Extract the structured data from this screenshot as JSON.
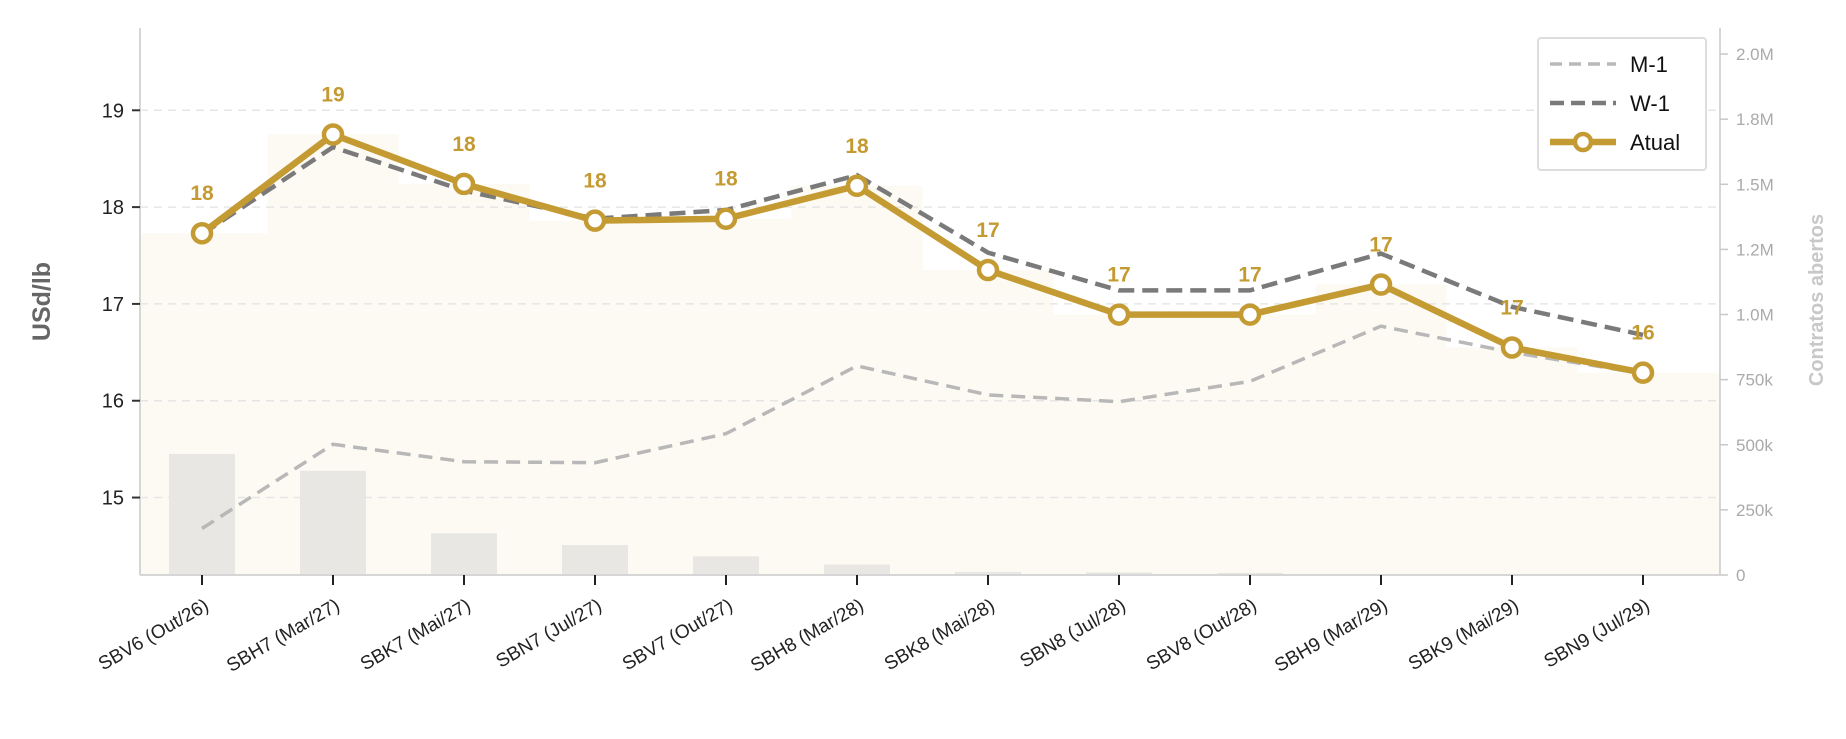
{
  "chart_data": {
    "type": "line",
    "categories": [
      "SBV6 (Out/26)",
      "SBH7 (Mar/27)",
      "SBK7 (Mai/27)",
      "SBN7 (Jul/27)",
      "SBV7 (Out/27)",
      "SBH8 (Mar/28)",
      "SBK8 (Mai/28)",
      "SBN8 (Jul/28)",
      "SBV8 (Out/28)",
      "SBH9 (Mar/29)",
      "SBK9 (Mai/29)",
      "SBN9 (Jul/29)"
    ],
    "ylabel": "USd/lb",
    "y2label": "Contratos abertos",
    "ylim": [
      14.2,
      19.85
    ],
    "y2lim": [
      0,
      2100000
    ],
    "yticks": [
      15,
      16,
      17,
      18,
      19
    ],
    "y2ticks": [
      0,
      250000,
      500000,
      750000,
      1000000,
      1250000,
      1500000,
      1750000,
      2000000
    ],
    "y2ticklabels": [
      "0",
      "250k",
      "500k",
      "750k",
      "1.0M",
      "1.2M",
      "1.5M",
      "1.8M",
      "2.0M"
    ],
    "grid": true,
    "legend_position": "top-right",
    "series": [
      {
        "name": "M-1",
        "style": "dashed",
        "color": "#b8b8b8",
        "values": [
          14.68,
          15.55,
          15.37,
          15.36,
          15.66,
          16.36,
          16.06,
          15.99,
          16.2,
          16.77,
          16.5,
          16.28
        ]
      },
      {
        "name": "W-1",
        "style": "dashed",
        "color": "#7a7a7a",
        "values": [
          17.72,
          18.62,
          18.17,
          17.88,
          17.97,
          18.33,
          17.53,
          17.14,
          17.14,
          17.52,
          16.97,
          16.68
        ]
      },
      {
        "name": "Atual",
        "style": "solid-markers",
        "color": "#c49a32",
        "values": [
          17.73,
          18.75,
          18.24,
          17.86,
          17.88,
          18.22,
          17.35,
          16.89,
          16.89,
          17.2,
          16.55,
          16.29
        ]
      }
    ],
    "data_labels": [
      "18",
      "19",
      "18",
      "18",
      "18",
      "18",
      "17",
      "17",
      "17",
      "17",
      "17",
      "16"
    ],
    "open_interest": [
      465000,
      400000,
      160000,
      115000,
      72000,
      40000,
      12000,
      10000,
      8000,
      0,
      0,
      0
    ]
  }
}
